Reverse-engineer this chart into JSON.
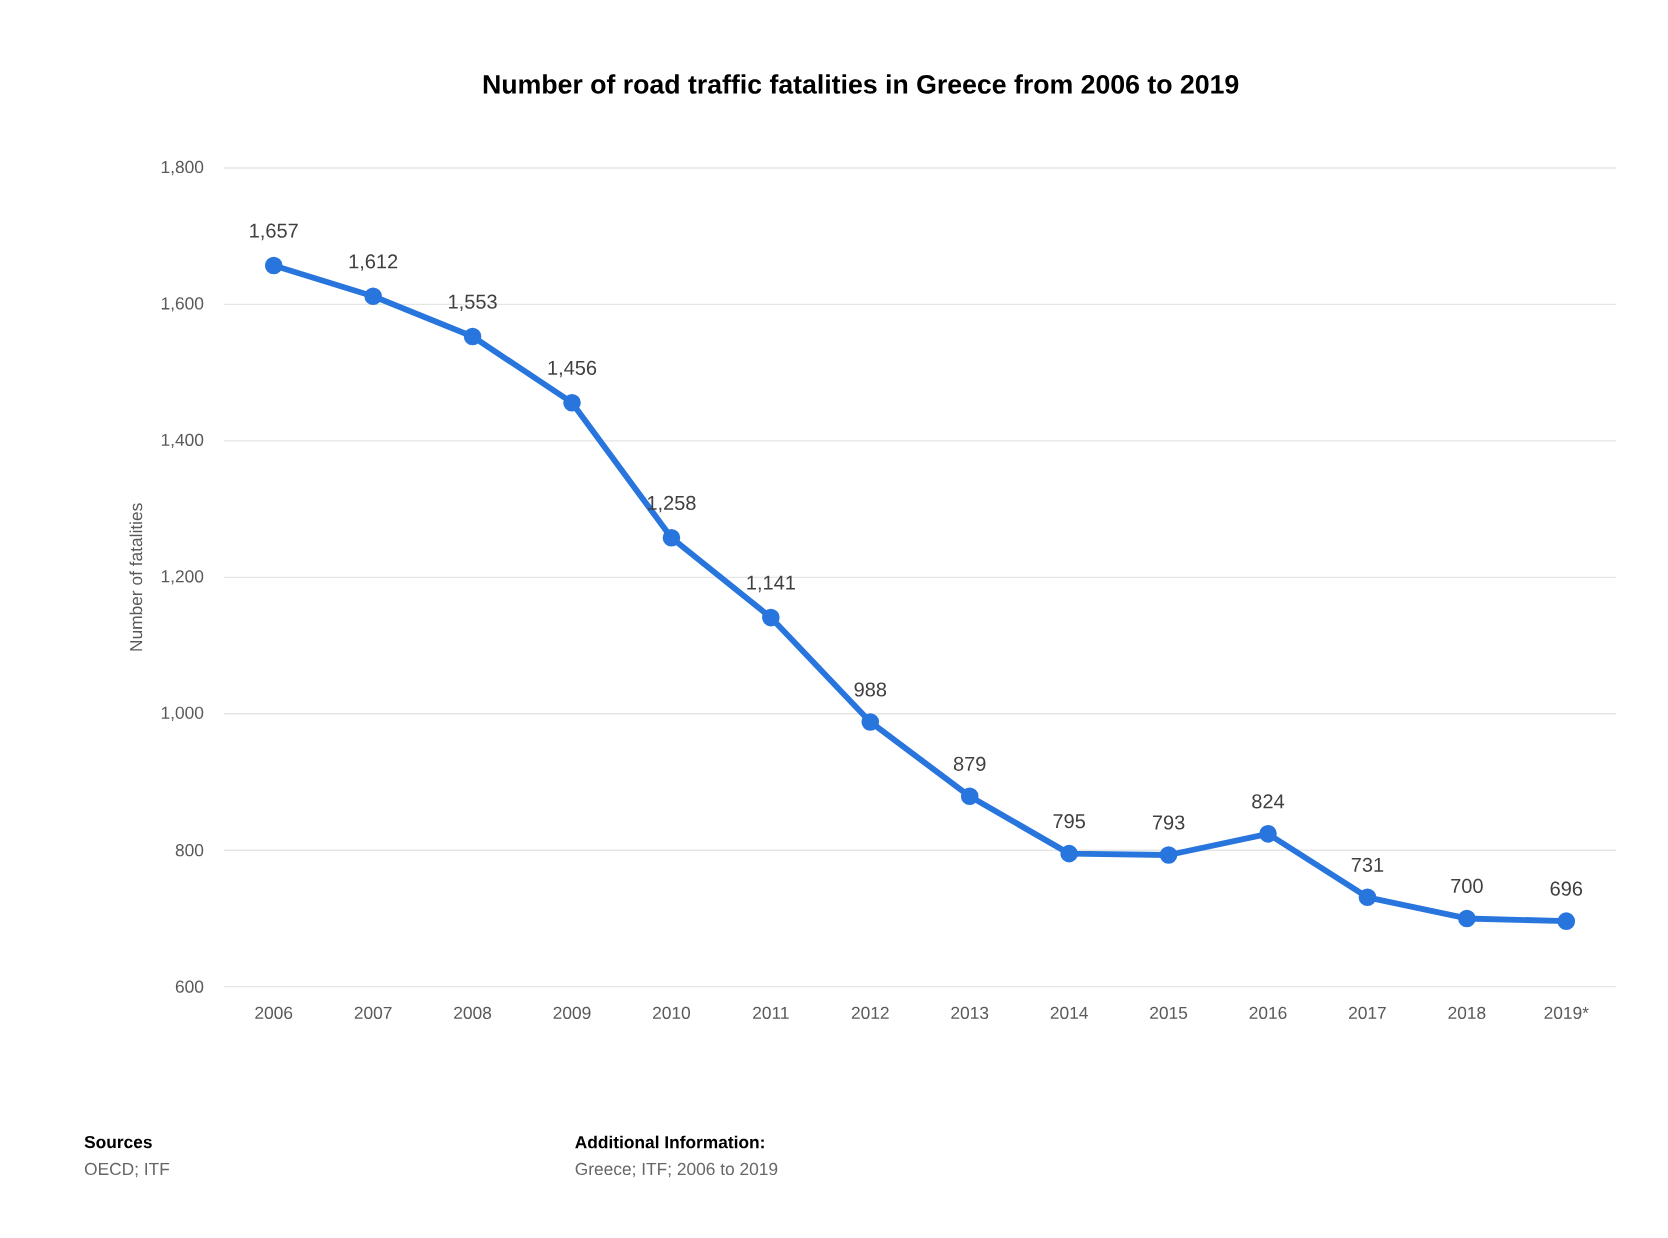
{
  "chart_data": {
    "type": "line",
    "title": "Number of road traffic fatalities in Greece from 2006 to 2019",
    "ylabel": "Number of fatalities",
    "categories": [
      "2006",
      "2007",
      "2008",
      "2009",
      "2010",
      "2011",
      "2012",
      "2013",
      "2014",
      "2015",
      "2016",
      "2017",
      "2018",
      "2019*"
    ],
    "series": [
      {
        "color": "#2876dd",
        "values": [
          1657,
          1612,
          1553,
          1456,
          1258,
          1141,
          988,
          879,
          795,
          793,
          824,
          731,
          700,
          696
        ],
        "value_labels": [
          "1,657",
          "1,612",
          "1,553",
          "1,456",
          "1,258",
          "1,141",
          "988",
          "879",
          "795",
          "793",
          "824",
          "731",
          "700",
          "696"
        ]
      }
    ],
    "ylim": [
      600,
      1800
    ],
    "yticks": [
      {
        "value": 600,
        "label": "600"
      },
      {
        "value": 800,
        "label": "800"
      },
      {
        "value": 1000,
        "label": "1,000"
      },
      {
        "value": 1200,
        "label": "1,200"
      },
      {
        "value": 1400,
        "label": "1,400"
      },
      {
        "value": 1600,
        "label": "1,600"
      },
      {
        "value": 1800,
        "label": "1,800"
      }
    ],
    "grid": "y",
    "marker": "circle",
    "line_style": "solid",
    "annotations": [
      "Sources",
      "OECD; ITF",
      "Additional Information:",
      "Greece; ITF; 2006 to 2019"
    ]
  }
}
